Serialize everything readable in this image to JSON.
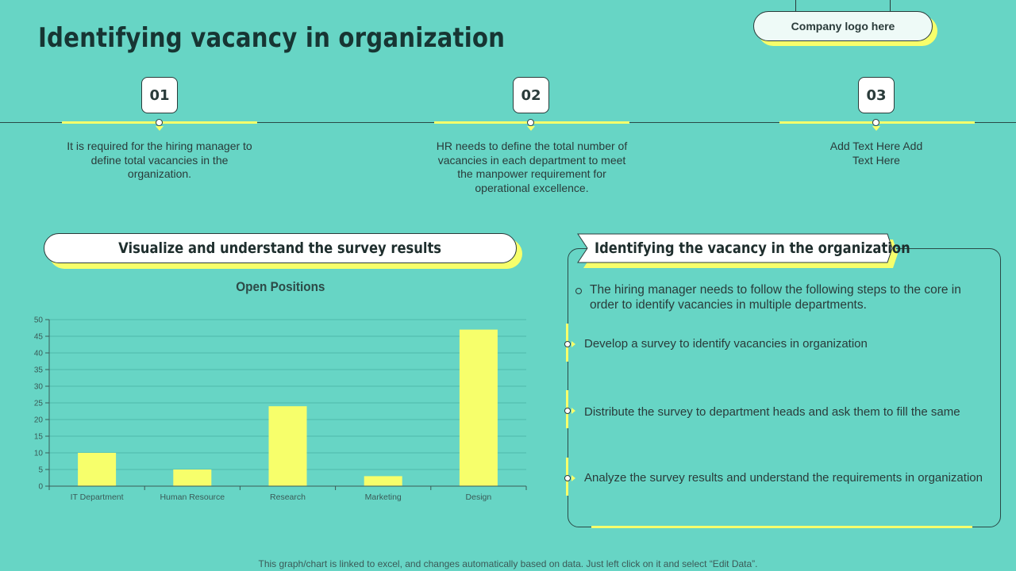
{
  "page": {
    "title": "Identifying vacancy in organization",
    "logo_label": "Company logo here",
    "footer": "This graph/chart is linked to excel, and changes automatically based on data. Just left click on it and select “Edit Data”."
  },
  "timeline": {
    "steps": [
      {
        "number": "01",
        "text": "It is required for the hiring manager to define total vacancies in the organization."
      },
      {
        "number": "02",
        "text": "HR needs to define the total number of vacancies in each department to meet the manpower requirement for operational excellence."
      },
      {
        "number": "03",
        "text": "Add Text Here Add Text Here"
      }
    ]
  },
  "left_panel": {
    "header": "Visualize and understand the survey results"
  },
  "right_panel": {
    "header": "Identifying the vacancy in the organization",
    "intro": "The hiring manager needs to follow the following steps to the core in order to identify vacancies in multiple departments.",
    "steps": [
      "Develop a survey to identify vacancies in organization",
      "Distribute the survey to  department heads and ask them to fill the same",
      "Analyze the survey results and understand the requirements in organization"
    ]
  },
  "colors": {
    "background": "#67d5c5",
    "accent": "#f7ff6b",
    "bar": "#f7ff6b",
    "text_dark": "#173533"
  },
  "chart_data": {
    "type": "bar",
    "title": "Open Positions",
    "categories": [
      "IT Department",
      "Human Resource",
      "Research",
      "Marketing",
      "Design"
    ],
    "values": [
      10,
      5,
      24,
      3,
      47
    ],
    "ylim": [
      0,
      50
    ],
    "yticks": [
      0,
      5,
      10,
      15,
      20,
      25,
      30,
      35,
      40,
      45,
      50
    ],
    "grid": true,
    "legend": "none"
  }
}
